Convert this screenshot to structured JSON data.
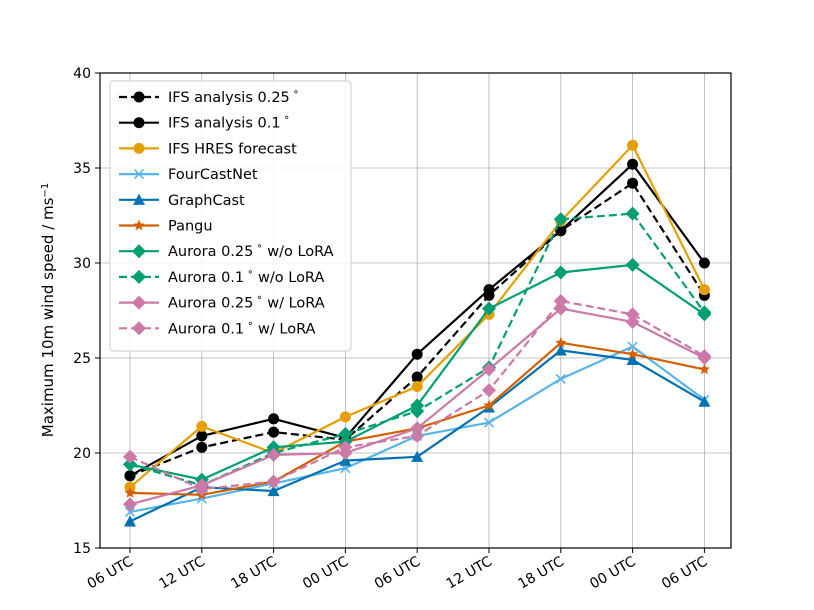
{
  "chart_data": {
    "type": "line",
    "ylabel": "Maximum 10m wind speed / ms",
    "ylabel_sup": "−1",
    "ylim": [
      15,
      40
    ],
    "yticks": [
      15,
      20,
      25,
      30,
      35,
      40
    ],
    "grid": true,
    "legend": "top-left",
    "categories": [
      "06 UTC",
      "12 UTC",
      "18 UTC",
      "00 UTC",
      "06 UTC",
      "12 UTC",
      "18 UTC",
      "00 UTC",
      "06 UTC"
    ],
    "series": [
      {
        "name": "IFS analysis 0.25$^\\circ$",
        "label_text": "IFS analysis 0.25",
        "label_deg": "∘",
        "label_tail": "",
        "color": "#000000",
        "dash": true,
        "marker": "circle",
        "values": [
          18.8,
          20.3,
          21.1,
          20.7,
          24.0,
          28.3,
          31.7,
          34.2,
          28.3
        ]
      },
      {
        "name": "IFS analysis 0.1",
        "label_text": "IFS analysis 0.1",
        "label_deg": "∘",
        "label_tail": "",
        "color": "#000000",
        "dash": false,
        "marker": "circle",
        "values": [
          18.8,
          20.9,
          21.8,
          20.8,
          25.2,
          28.6,
          31.7,
          35.2,
          30.0
        ]
      },
      {
        "name": "IFS HRES forecast",
        "label_text": "IFS HRES forecast",
        "label_deg": "",
        "label_tail": "",
        "color": "#E69F00",
        "dash": false,
        "marker": "circle",
        "values": [
          18.2,
          21.4,
          20.0,
          21.9,
          23.5,
          27.3,
          32.2,
          36.2,
          28.6
        ]
      },
      {
        "name": "FourCastNet",
        "label_text": "FourCastNet",
        "label_deg": "",
        "label_tail": "",
        "color": "#56B4E9",
        "dash": false,
        "marker": "x",
        "values": [
          16.9,
          17.6,
          18.4,
          19.2,
          20.9,
          21.6,
          23.9,
          25.6,
          22.8
        ]
      },
      {
        "name": "GraphCast",
        "label_text": "GraphCast",
        "label_deg": "",
        "label_tail": "",
        "color": "#0072B2",
        "dash": false,
        "marker": "triangle",
        "values": [
          16.4,
          18.2,
          18.0,
          19.6,
          19.8,
          22.4,
          25.4,
          24.9,
          22.7
        ]
      },
      {
        "name": "Pangu",
        "label_text": "Pangu",
        "label_deg": "",
        "label_tail": "",
        "color": "#D55E00",
        "dash": false,
        "marker": "star",
        "values": [
          17.9,
          17.8,
          18.5,
          20.6,
          21.3,
          22.5,
          25.8,
          25.2,
          24.4
        ]
      },
      {
        "name": "Aurora 0.25 w/o LoRA",
        "label_text": "Aurora 0.25",
        "label_deg": "∘",
        "label_tail": " w/o LoRA",
        "color": "#009E73",
        "dash": false,
        "marker": "diamond",
        "values": [
          19.4,
          18.6,
          20.3,
          20.6,
          22.5,
          27.6,
          29.5,
          29.9,
          27.3
        ]
      },
      {
        "name": "Aurora 0.1 w/o LoRA",
        "label_text": "Aurora 0.1",
        "label_deg": "∘",
        "label_tail": " w/o LoRA",
        "color": "#009E73",
        "dash": true,
        "marker": "diamond",
        "values": [
          19.4,
          18.3,
          20.0,
          21.0,
          22.2,
          24.5,
          32.3,
          32.6,
          27.4
        ]
      },
      {
        "name": "Aurora 0.25 w/ LoRA",
        "label_text": "Aurora 0.25",
        "label_deg": "∘",
        "label_tail": " w/ LoRA",
        "color": "#CC79A7",
        "dash": false,
        "marker": "diamond",
        "values": [
          17.3,
          18.3,
          19.9,
          20.0,
          21.3,
          24.4,
          27.6,
          26.9,
          25.0
        ]
      },
      {
        "name": "Aurora 0.1 w/ LoRA",
        "label_text": "Aurora 0.1",
        "label_deg": "∘",
        "label_tail": " w/ LoRA",
        "color": "#CC79A7",
        "dash": true,
        "marker": "diamond",
        "values": [
          19.8,
          18.1,
          18.5,
          20.3,
          20.9,
          23.3,
          28.0,
          27.3,
          25.1
        ]
      }
    ]
  }
}
